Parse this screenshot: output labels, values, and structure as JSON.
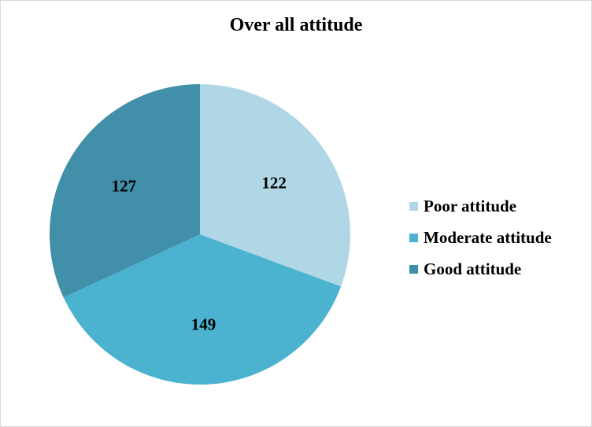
{
  "chart_data": {
    "type": "pie",
    "title": "Over all attitude",
    "categories": [
      "Poor attitude",
      "Moderate attitude",
      "Good attitude"
    ],
    "values": [
      122,
      149,
      127
    ],
    "data_labels": [
      "122",
      "149",
      "127"
    ],
    "colors": [
      "#b0d7e6",
      "#4bb3d0",
      "#418fa9"
    ],
    "start_angle_deg": 0,
    "direction": "clockwise",
    "legend_position": "right"
  }
}
